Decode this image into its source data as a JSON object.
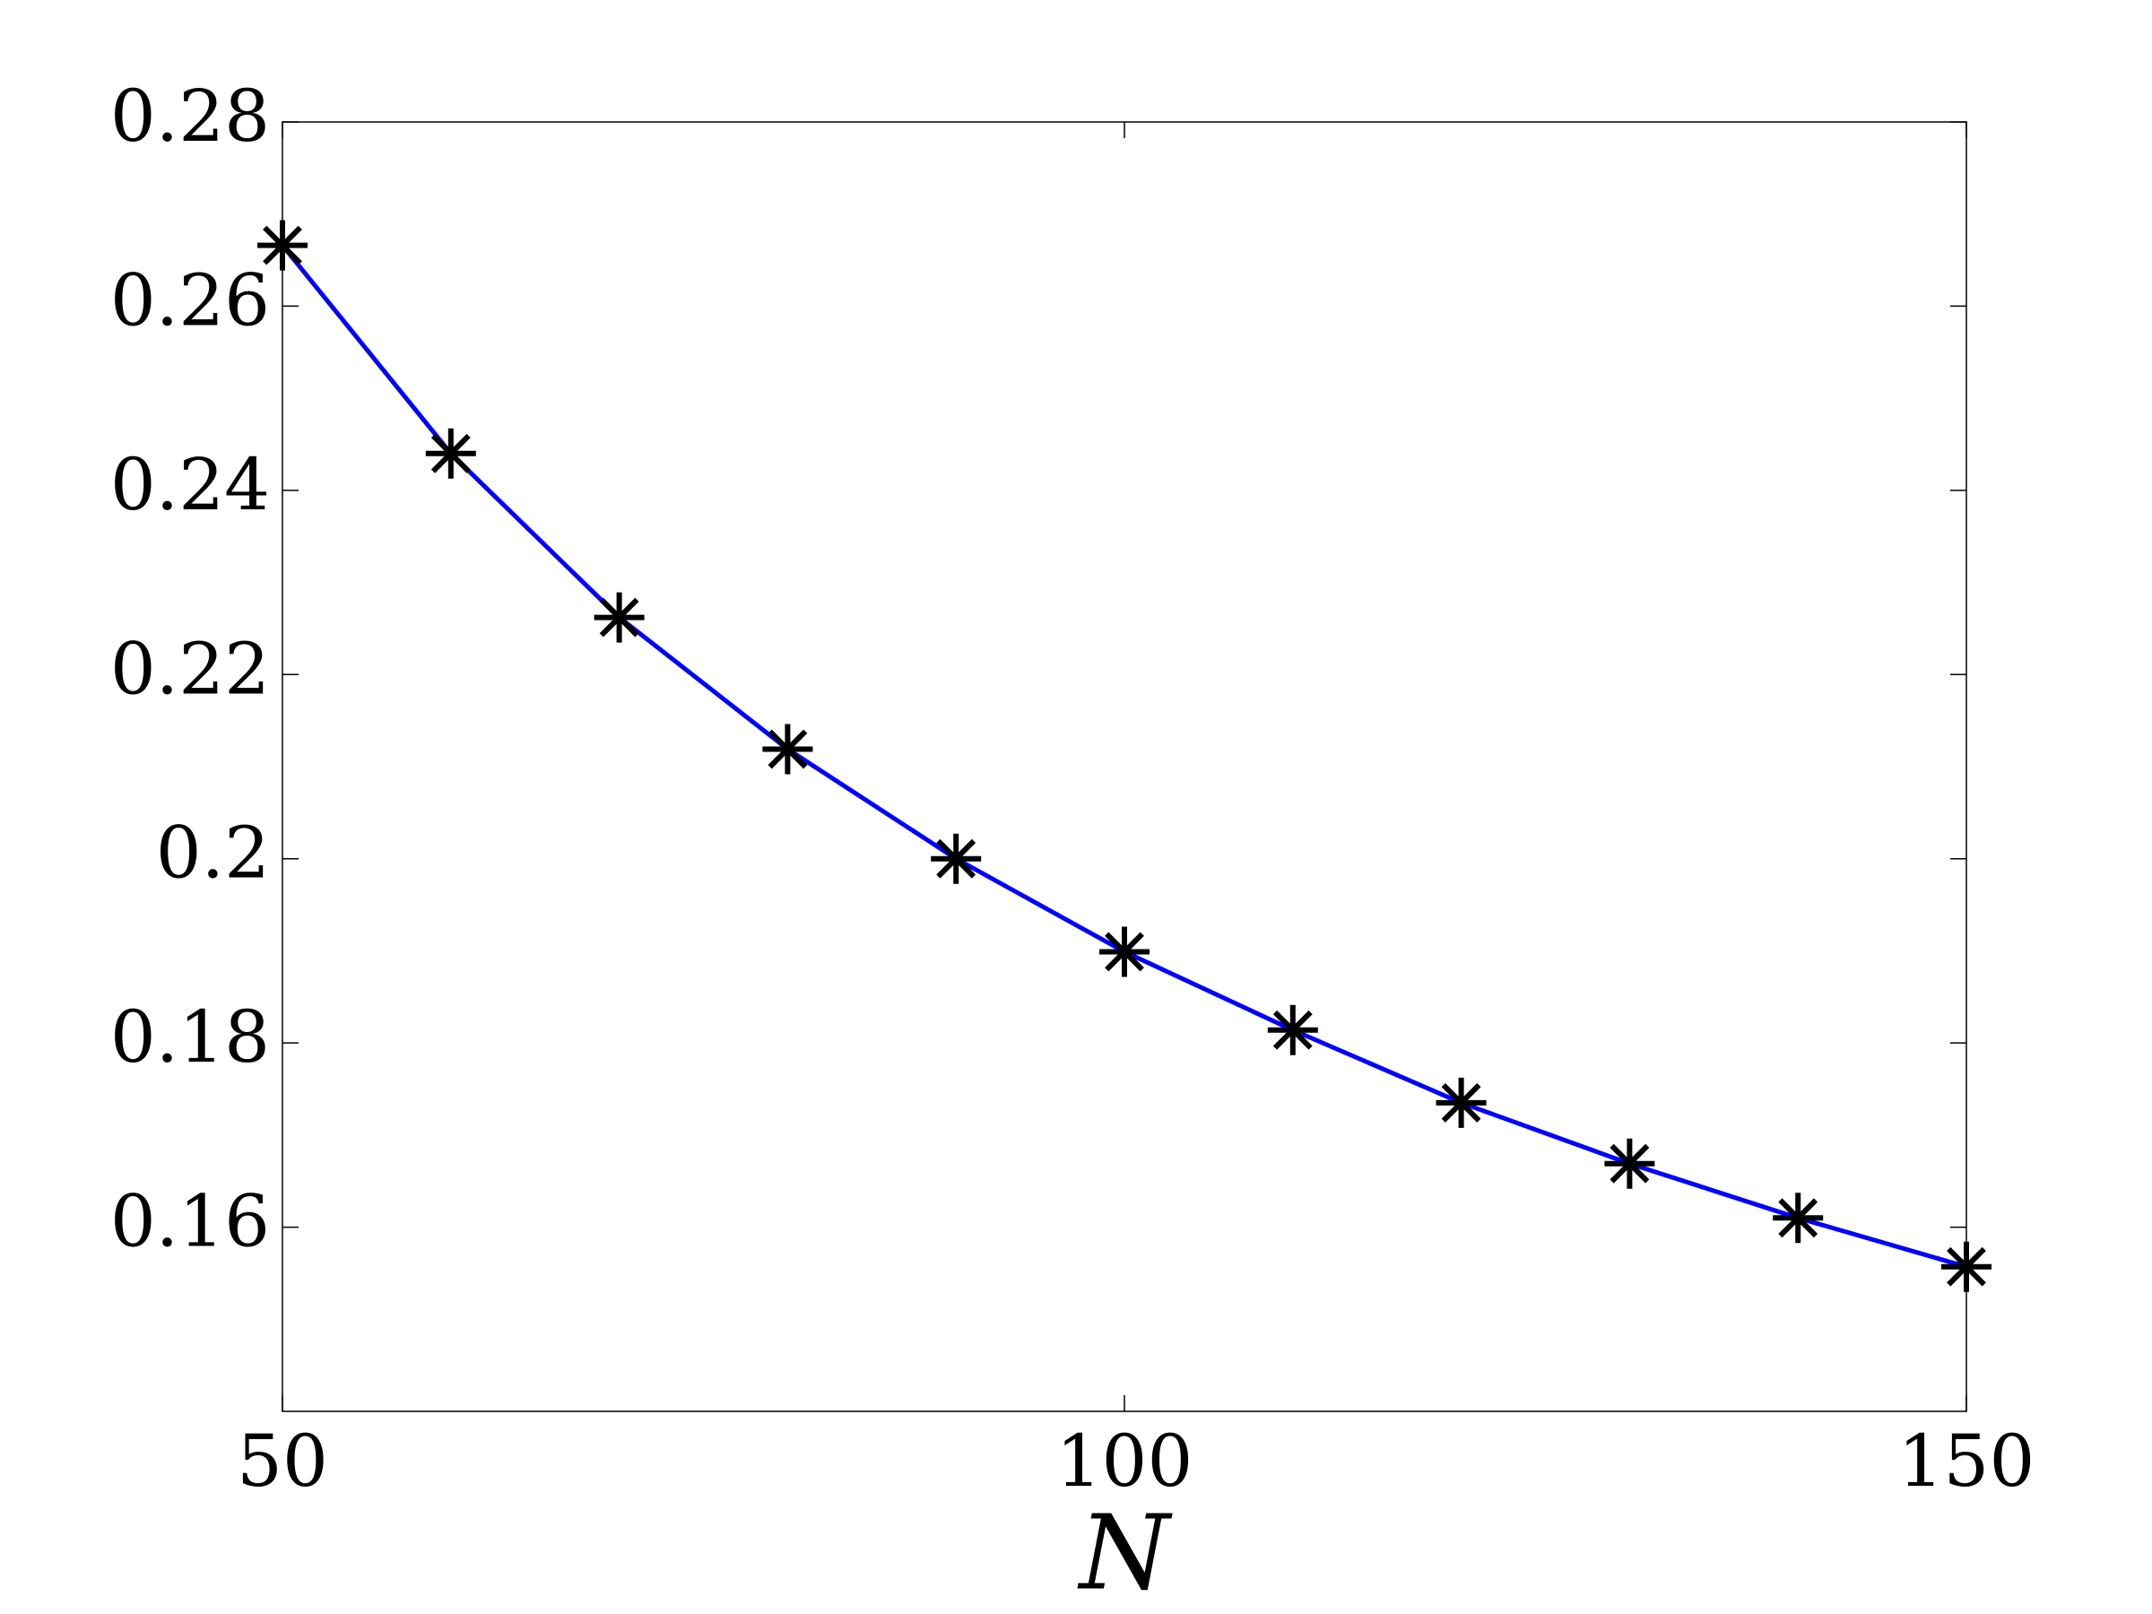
{
  "chart_data": {
    "type": "line",
    "x": [
      50,
      60,
      70,
      80,
      90,
      100,
      110,
      120,
      130,
      140,
      150
    ],
    "values": [
      0.2666,
      0.244,
      0.2262,
      0.2119,
      0.2,
      0.1899,
      0.1814,
      0.1735,
      0.1669,
      0.161,
      0.1557
    ],
    "color": "#0000ff",
    "marker_color": "#000000",
    "xlabel": "N",
    "xlim": [
      50,
      150
    ],
    "xticks": [
      50,
      100,
      150
    ],
    "ylim": [
      0.14,
      0.28
    ],
    "yticks": [
      0.16,
      0.18,
      0.2,
      0.22,
      0.24,
      0.26,
      0.28
    ]
  }
}
